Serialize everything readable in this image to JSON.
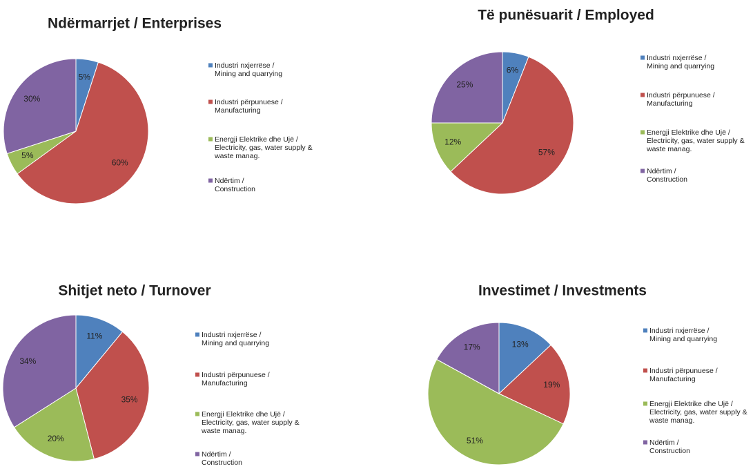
{
  "chart_data": [
    {
      "type": "pie",
      "title": "Ndërmarrjet / Enterprises",
      "categories": [
        [
          "Industri nxjerrëse /",
          "Mining and quarrying"
        ],
        [
          "Industri përpunuese /",
          "Manufacturing"
        ],
        [
          "Energji Elektrike dhe Ujë /",
          "Electricity, gas, water supply &",
          "waste manag."
        ],
        [
          "Ndërtim /",
          "Construction"
        ]
      ],
      "values": [
        5,
        60,
        5,
        30
      ],
      "value_labels": [
        "5%",
        "60%",
        "5%",
        "30%"
      ],
      "colors": [
        "#4f81bd",
        "#c0504d",
        "#9bbb59",
        "#8064a2"
      ]
    },
    {
      "type": "pie",
      "title": "Të  punësuarit / Employed",
      "categories": [
        [
          "Industri nxjerrëse /",
          "Mining and quarrying"
        ],
        [
          "Industri përpunuese /",
          "Manufacturing"
        ],
        [
          "Energji Elektrike dhe Ujë /",
          "Electricity, gas, water supply &",
          "waste manag."
        ],
        [
          "Ndërtim /",
          "Construction"
        ]
      ],
      "values": [
        6,
        57,
        12,
        25
      ],
      "value_labels": [
        "6%",
        "57%",
        "12%",
        "25%"
      ],
      "colors": [
        "#4f81bd",
        "#c0504d",
        "#9bbb59",
        "#8064a2"
      ]
    },
    {
      "type": "pie",
      "title": "Shitjet neto / Turnover",
      "categories": [
        [
          "Industri nxjerrëse /",
          "Mining and quarrying"
        ],
        [
          "Industri përpunuese /",
          "Manufacturing"
        ],
        [
          "Energji Elektrike dhe Ujë /",
          "Electricity, gas, water supply &",
          "waste manag."
        ],
        [
          "Ndërtim /",
          "Construction"
        ]
      ],
      "values": [
        11,
        35,
        20,
        34
      ],
      "value_labels": [
        "11%",
        "35%",
        "20%",
        "34%"
      ],
      "colors": [
        "#4f81bd",
        "#c0504d",
        "#9bbb59",
        "#8064a2"
      ]
    },
    {
      "type": "pie",
      "title": "Investimet / Investments",
      "categories": [
        [
          "Industri nxjerrëse /",
          "Mining and quarrying"
        ],
        [
          "Industri përpunuese /",
          "Manufacturing"
        ],
        [
          "Energji Elektrike dhe Ujë /",
          "Electricity, gas, water supply &",
          "waste manag."
        ],
        [
          "Ndërtim /",
          "Construction"
        ]
      ],
      "values": [
        13,
        19,
        51,
        17
      ],
      "value_labels": [
        "13%",
        "19%",
        "51%",
        "17%"
      ],
      "colors": [
        "#4f81bd",
        "#c0504d",
        "#9bbb59",
        "#8064a2"
      ]
    }
  ]
}
